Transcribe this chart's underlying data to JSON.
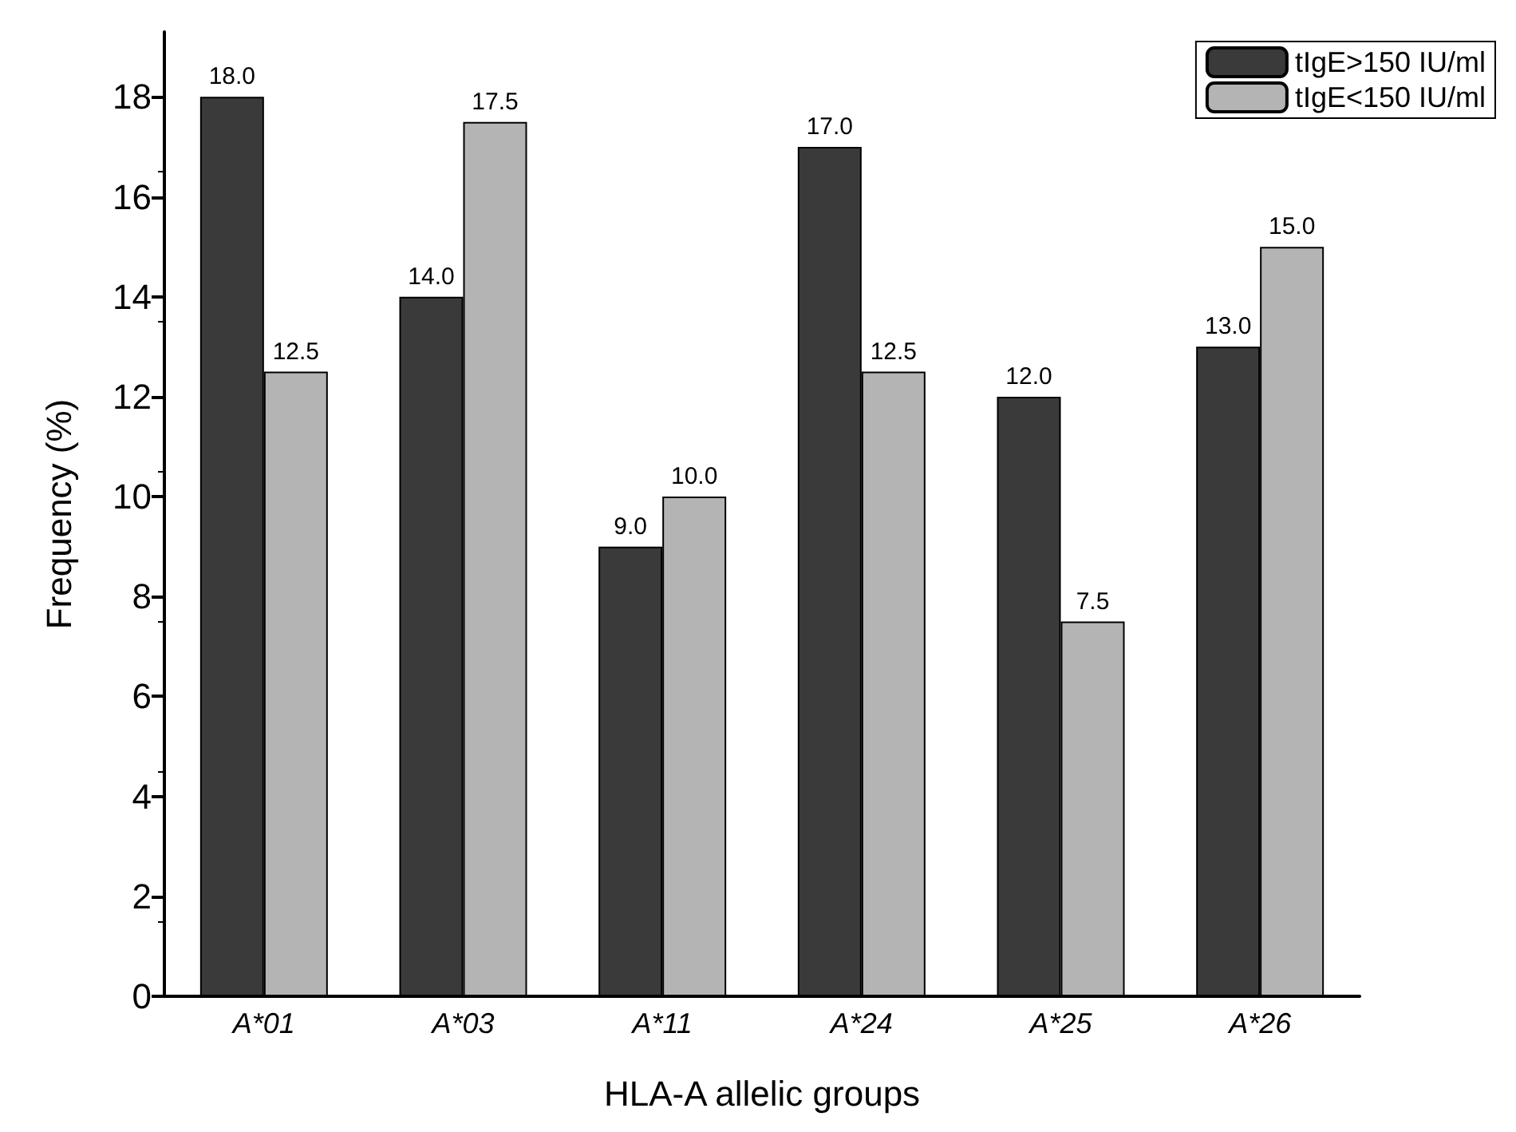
{
  "chart_data": {
    "type": "bar",
    "xlabel": "HLA-A allelic groups",
    "ylabel": "Frequency (%)",
    "categories": [
      "A*01",
      "A*03",
      "A*11",
      "A*24",
      "A*25",
      "A*26"
    ],
    "series": [
      {
        "name": "tIgE>150 IU/ml",
        "color": "#3a3a3a",
        "values": [
          18,
          14,
          9,
          17,
          12,
          13
        ],
        "value_labels": [
          "18.0",
          "14.0",
          "9.0",
          "17.0",
          "12.0",
          "13.0"
        ]
      },
      {
        "name": "tIgE<150 IU/ml",
        "color": "#b4b4b4",
        "values": [
          12.5,
          17.5,
          10,
          12.5,
          7.5,
          15
        ],
        "value_labels": [
          "12.5",
          "17.5",
          "10.0",
          "12.5",
          "7.5",
          "15.0"
        ]
      }
    ],
    "ylim": [
      0,
      19.3
    ],
    "yticks": [
      0,
      2,
      4,
      6,
      8,
      10,
      12,
      14,
      16,
      18
    ],
    "grid": false,
    "legend": "top right"
  }
}
